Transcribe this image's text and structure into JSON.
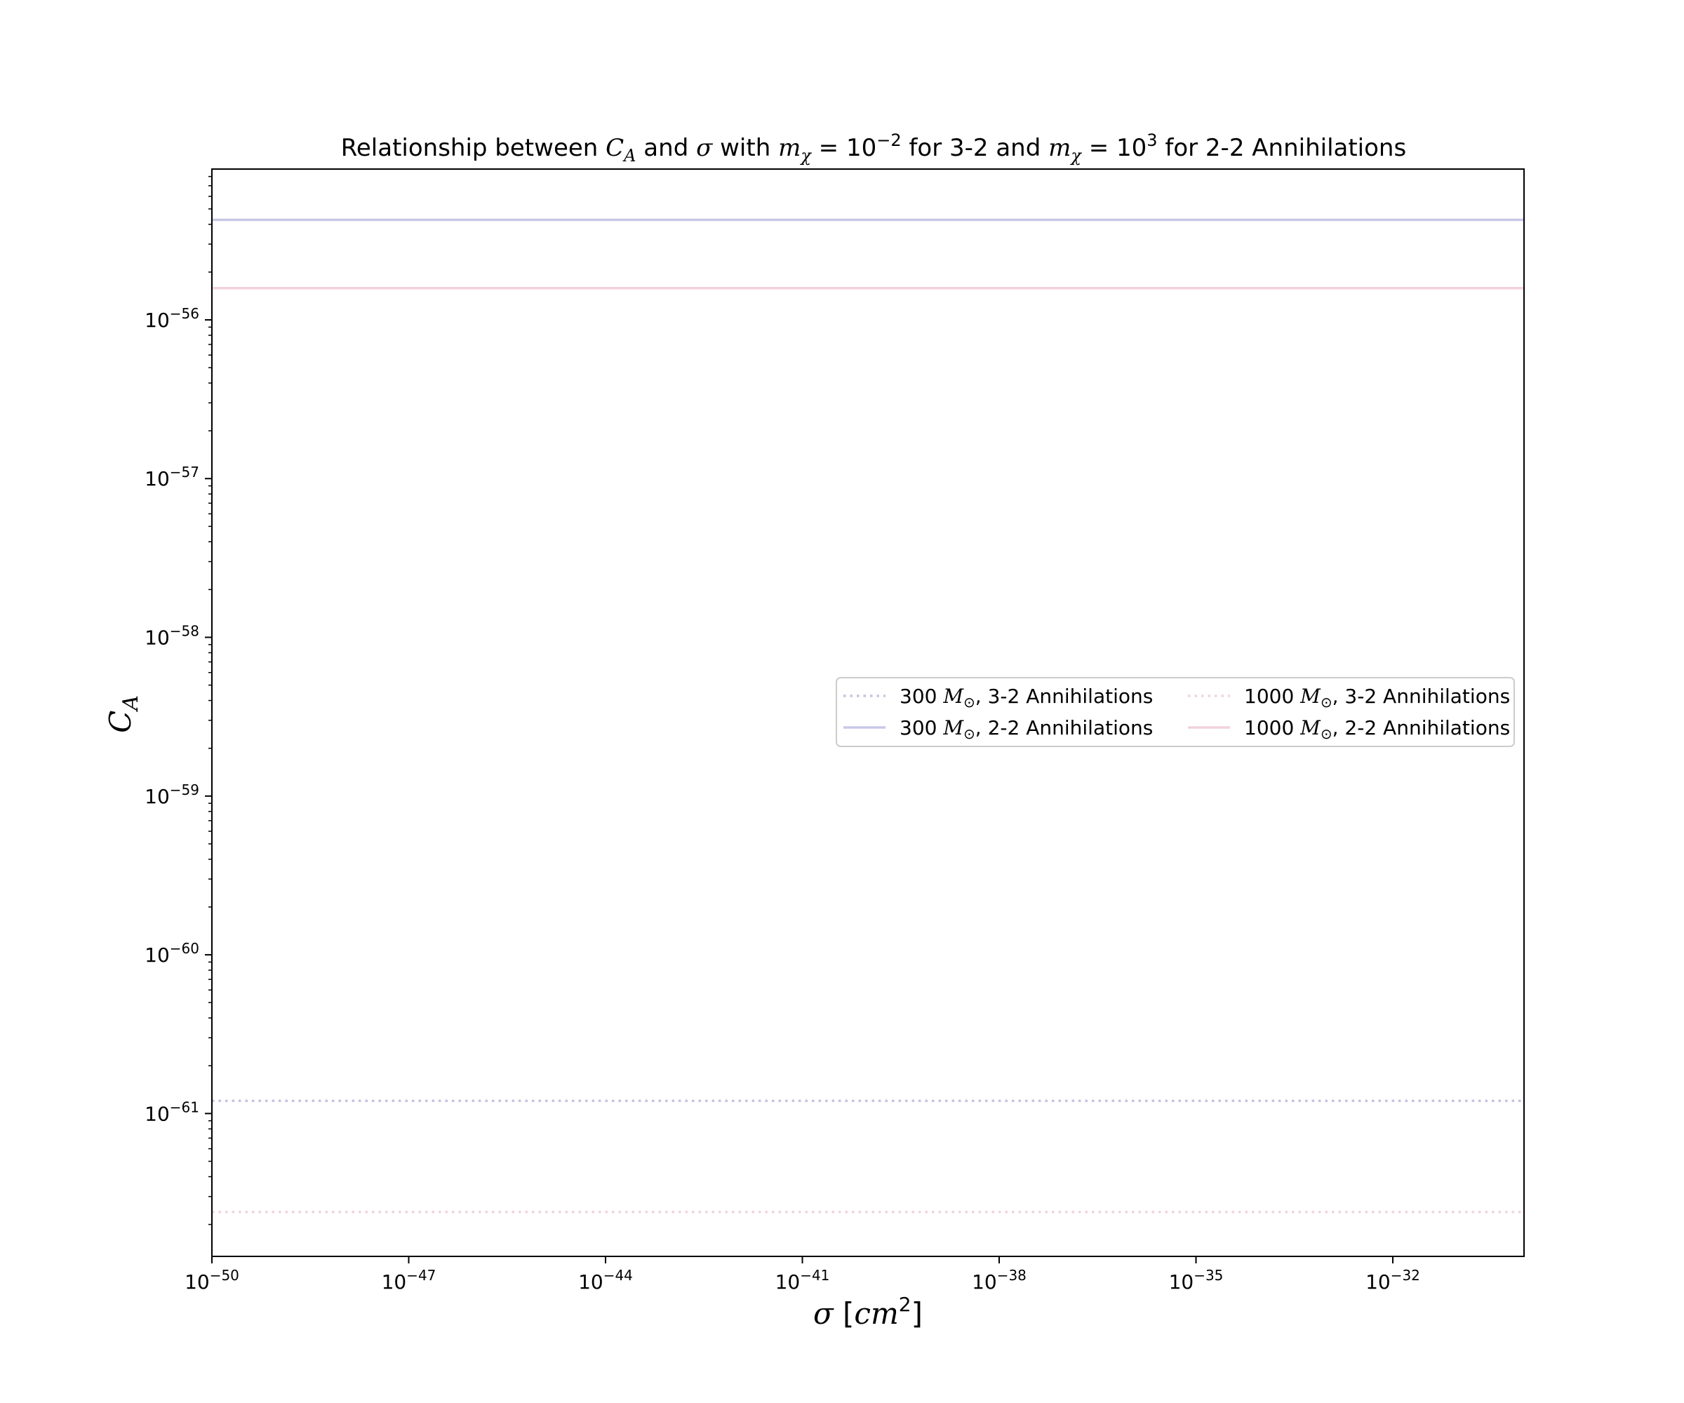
{
  "chart_data": {
    "type": "line",
    "title": {
      "p1": "Relationship between ",
      "ca_main": "C",
      "ca_sub": "A",
      "p2": " and ",
      "sigma": "σ",
      "p3": " with ",
      "m1_main": "m",
      "m1_sub": "χ",
      "m1_eq": " = 10",
      "m1_exp": "−2",
      "p4": " for 3-2 and ",
      "m2_main": "m",
      "m2_sub": "χ",
      "m2_eq": " = 10",
      "m2_exp": "3",
      "p5": " for 2-2 Annihilations"
    },
    "xlabel": {
      "sigma": "σ",
      "open": " [",
      "unit": "cm",
      "exp": "2",
      "close": "]"
    },
    "ylabel": {
      "main": "C",
      "sub": "A"
    },
    "x_scale": "log",
    "y_scale": "log",
    "xlim_exp": [
      -50,
      -30
    ],
    "ylim_exp": [
      -61.9,
      -55.05
    ],
    "x_ticks": [
      {
        "base": "10",
        "exp": "−50",
        "value": -50
      },
      {
        "base": "10",
        "exp": "−47",
        "value": -47
      },
      {
        "base": "10",
        "exp": "−44",
        "value": -44
      },
      {
        "base": "10",
        "exp": "−41",
        "value": -41
      },
      {
        "base": "10",
        "exp": "−38",
        "value": -38
      },
      {
        "base": "10",
        "exp": "−35",
        "value": -35
      },
      {
        "base": "10",
        "exp": "−32",
        "value": -32
      }
    ],
    "y_ticks": [
      {
        "base": "10",
        "exp": "−56",
        "value": -56
      },
      {
        "base": "10",
        "exp": "−57",
        "value": -57
      },
      {
        "base": "10",
        "exp": "−58",
        "value": -58
      },
      {
        "base": "10",
        "exp": "−59",
        "value": -59
      },
      {
        "base": "10",
        "exp": "−60",
        "value": -60
      },
      {
        "base": "10",
        "exp": "−61",
        "value": -61
      }
    ],
    "grid": false,
    "legend_position": "center-right",
    "series": [
      {
        "name": {
          "pre": "300 ",
          "m": "M",
          "sub": "⊙",
          "post": ", 3-2 Annihilations"
        },
        "style": "dotted",
        "color": "#c4c4e0",
        "y_log10": -60.92
      },
      {
        "name": {
          "pre": "300 ",
          "m": "M",
          "sub": "⊙",
          "post": ", 2-2 Annihilations"
        },
        "style": "solid",
        "color": "#c8c8e8",
        "y_log10": -55.37
      },
      {
        "name": {
          "pre": "1000 ",
          "m": "M",
          "sub": "⊙",
          "post": ", 3-2 Annihilations"
        },
        "style": "dotted",
        "color": "#f0d4dc",
        "y_log10": -61.62
      },
      {
        "name": {
          "pre": "1000 ",
          "m": "M",
          "sub": "⊙",
          "post": ", 2-2 Annihilations"
        },
        "style": "solid",
        "color": "#f2d2dc",
        "y_log10": -55.8
      }
    ]
  }
}
